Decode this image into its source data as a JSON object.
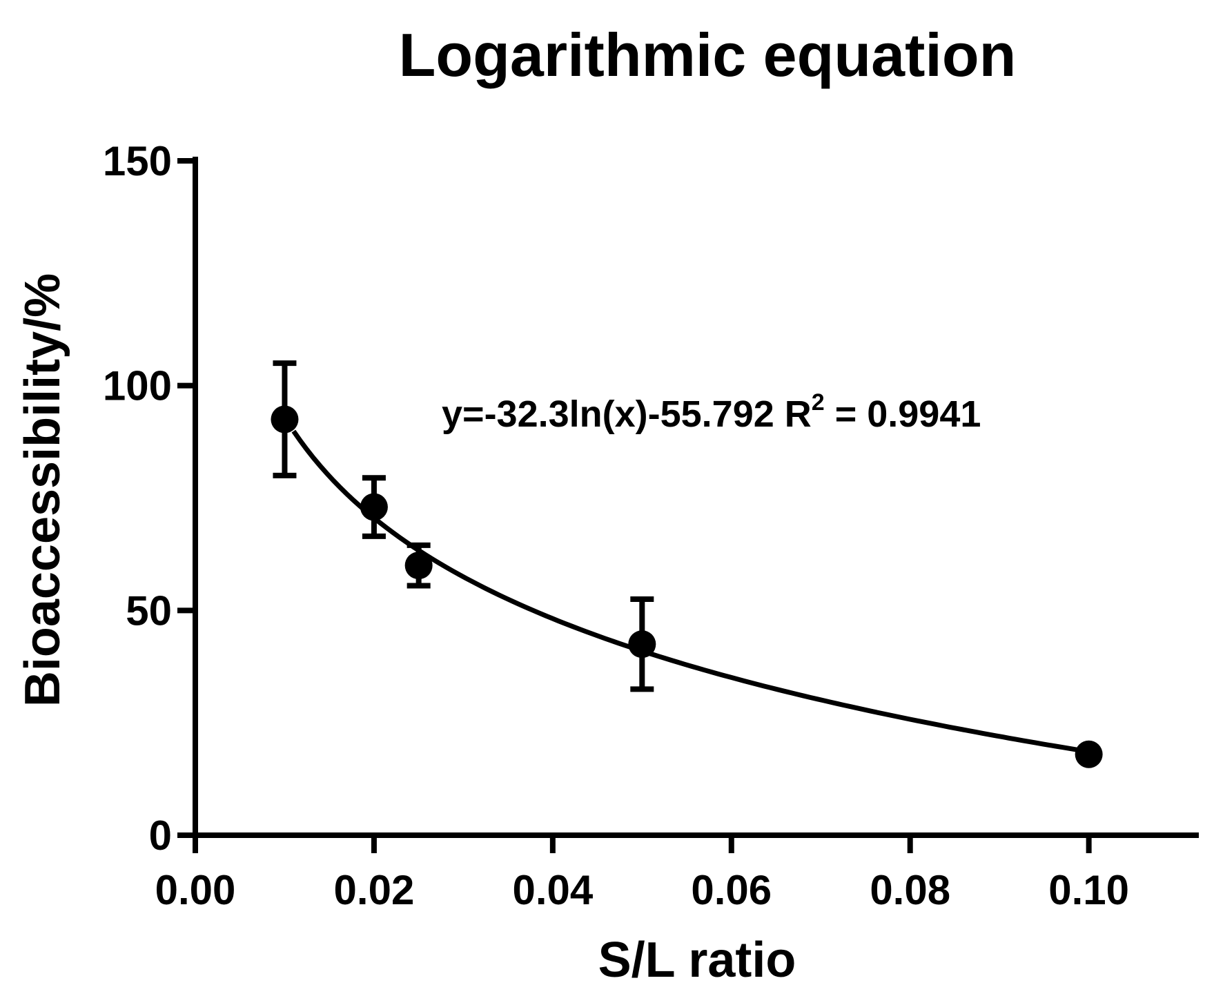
{
  "chart_data": {
    "type": "scatter",
    "title": "Logarithmic equation",
    "xlabel": "S/L ratio",
    "ylabel": "Bioaccessibility/%",
    "xlim": [
      0.0,
      0.112
    ],
    "ylim": [
      0,
      150
    ],
    "xticks": [
      0.0,
      0.02,
      0.04,
      0.06,
      0.08,
      0.1
    ],
    "xtick_labels": [
      "0.00",
      "0.02",
      "0.04",
      "0.06",
      "0.08",
      "0.10"
    ],
    "yticks": [
      0,
      50,
      100,
      150
    ],
    "ytick_labels": [
      "0",
      "50",
      "100",
      "150"
    ],
    "grid": false,
    "series": [
      {
        "name": "Bioaccessibility",
        "x": [
          0.01,
          0.02,
          0.025,
          0.05,
          0.1
        ],
        "y": [
          92.5,
          73,
          60,
          42.5,
          18
        ],
        "error": [
          12.5,
          6.5,
          4.5,
          10,
          0
        ]
      }
    ],
    "fit": {
      "equation": "y=-32.3ln(x)-55.792",
      "a": -32.3,
      "b": -55.792,
      "x_range": [
        0.011,
        0.1
      ]
    },
    "annotation": {
      "equation_text": "y=-32.3ln(x)-55.792  R",
      "r2_superscript": "2",
      "r2_value_text": " = 0.9941"
    },
    "colors": {
      "ink": "#000000",
      "background": "#ffffff"
    }
  }
}
